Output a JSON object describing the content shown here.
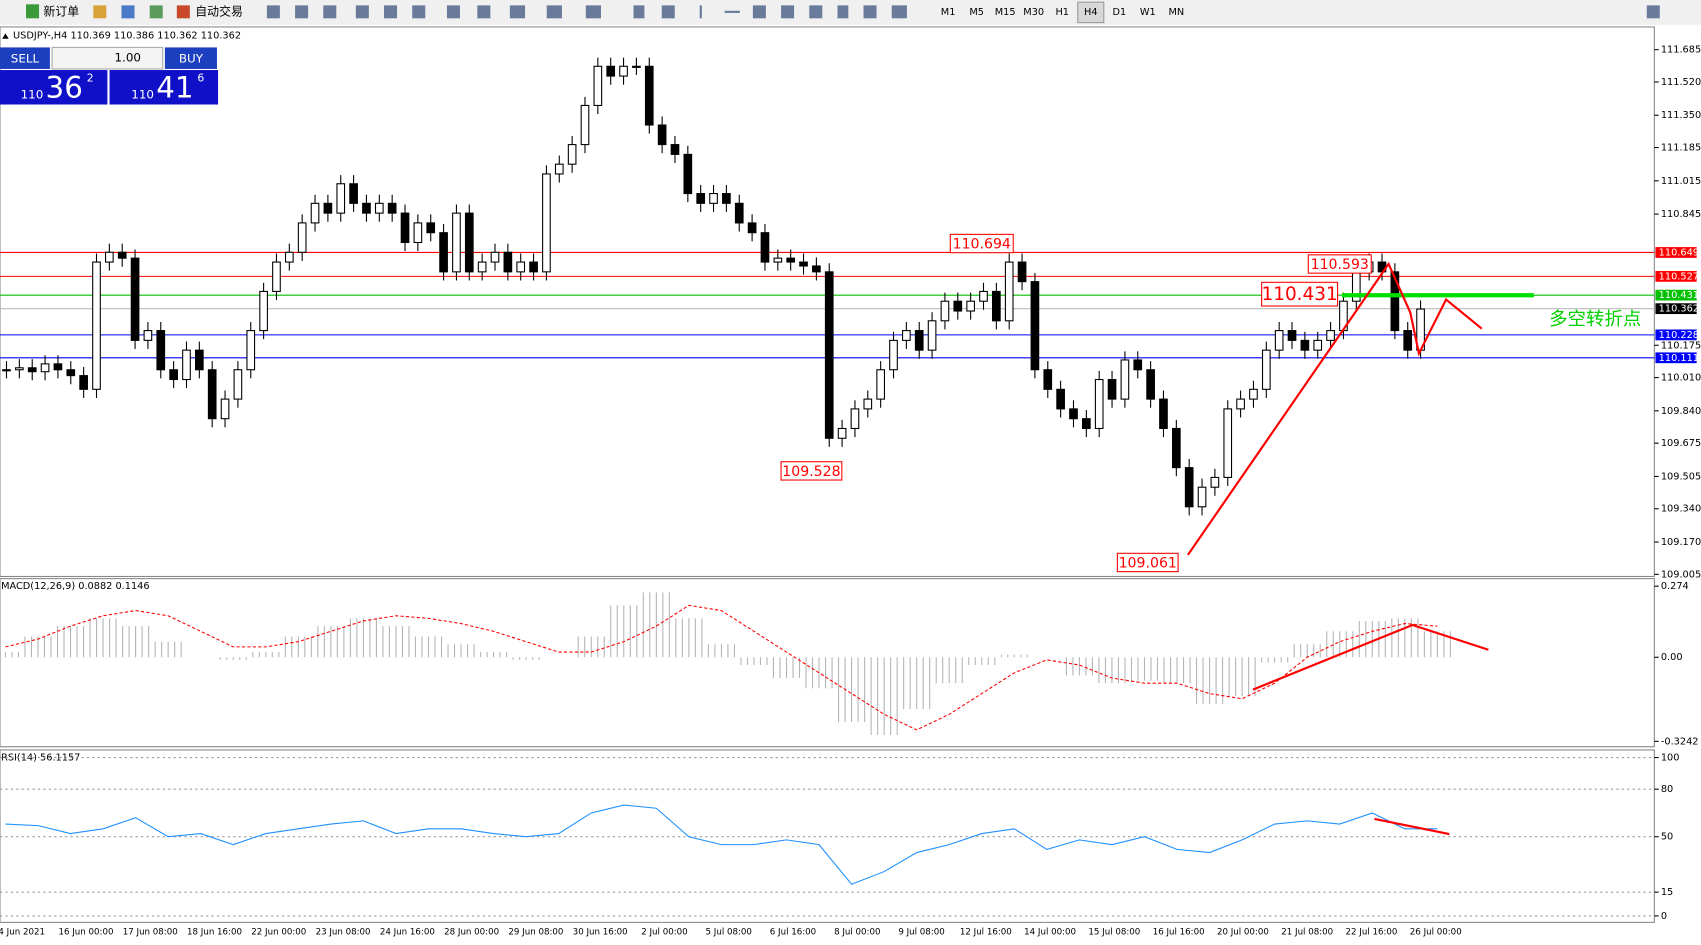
{
  "toolbar": {
    "new_order": "新订单",
    "auto_trading": "自动交易",
    "timeframes": [
      "M1",
      "M5",
      "M15",
      "M30",
      "H1",
      "H4",
      "D1",
      "W1",
      "MN"
    ],
    "active_timeframe": "H4"
  },
  "trade_panel": {
    "sell": "SELL",
    "lots": "1.00",
    "buy": "BUY",
    "bid": {
      "big": "110",
      "main": "36",
      "sup": "2"
    },
    "ask": {
      "big": "110",
      "main": "41",
      "sup": "6"
    }
  },
  "chart_data": [
    {
      "type": "candlestick",
      "title": "USDJPY-,H4  110.369 110.386 110.362 110.362",
      "categories": [
        "4 Jun 2021",
        null,
        null,
        null,
        null,
        "16 Jun 00:00",
        null,
        null,
        null,
        null,
        "17 Jun 08:00",
        null,
        null,
        null,
        null,
        "18 Jun 16:00",
        null,
        null,
        null,
        null,
        "22 Jun 00:00",
        null,
        null,
        null,
        null,
        "23 Jun 08:00",
        null,
        null,
        null,
        null,
        "24 Jun 16:00",
        null,
        null,
        null,
        null,
        "28 Jun 00:00",
        null,
        null,
        null,
        null,
        "29 Jun 08:00",
        null,
        null,
        null,
        null,
        "30 Jun 16:00",
        null,
        null,
        null,
        null,
        "2 Jul 00:00",
        null,
        null,
        null,
        null,
        "5 Jul 08:00",
        null,
        null,
        null,
        null,
        "6 Jul 16:00",
        null,
        null,
        null,
        null,
        "8 Jul 00:00",
        null,
        null,
        null,
        null,
        "9 Jul 08:00",
        null,
        null,
        null,
        null,
        "12 Jul 16:00",
        null,
        null,
        null,
        null,
        "14 Jul 00:00",
        null,
        null,
        null,
        null,
        "15 Jul 08:00",
        null,
        null,
        null,
        null,
        "16 Jul 16:00",
        null,
        null,
        null,
        null,
        "20 Jul 00:00",
        null,
        null,
        null,
        null,
        "21 Jul 08:00",
        null,
        null,
        null,
        null,
        "22 Jul 16:00",
        null,
        null,
        null,
        null,
        "26 Jul 00:00"
      ],
      "values": [
        110.05,
        110.06,
        110.04,
        110.08,
        110.05,
        110.02,
        109.95,
        110.6,
        110.65,
        110.62,
        110.2,
        110.25,
        110.05,
        110.0,
        110.15,
        110.05,
        109.8,
        109.9,
        110.05,
        110.25,
        110.45,
        110.6,
        110.65,
        110.8,
        110.9,
        110.85,
        111.0,
        110.9,
        110.85,
        110.9,
        110.85,
        110.7,
        110.8,
        110.75,
        110.55,
        110.85,
        110.55,
        110.6,
        110.65,
        110.55,
        110.6,
        110.55,
        111.05,
        111.1,
        111.2,
        111.4,
        111.6,
        111.55,
        111.6,
        111.6,
        111.3,
        111.2,
        111.15,
        110.95,
        110.9,
        110.95,
        110.9,
        110.8,
        110.75,
        110.6,
        110.62,
        110.6,
        110.58,
        110.55,
        109.7,
        109.75,
        109.85,
        109.9,
        110.05,
        110.2,
        110.25,
        110.15,
        110.3,
        110.4,
        110.35,
        110.4,
        110.45,
        110.3,
        110.6,
        110.5,
        110.05,
        109.95,
        109.85,
        109.8,
        109.75,
        110.0,
        109.9,
        110.1,
        110.05,
        109.9,
        109.75,
        109.55,
        109.35,
        109.45,
        109.5,
        109.85,
        109.9,
        109.95,
        110.15,
        110.25,
        110.2,
        110.15,
        110.2,
        110.25,
        110.4,
        110.55,
        110.6,
        110.55,
        110.25,
        110.15,
        110.36
      ],
      "ylim": [
        108.994,
        111.79
      ],
      "yticks": [
        111.685,
        {
          "value": 111.52,
          "label": "111.520"
        },
        {
          "value": 111.35,
          "label": "111.350"
        },
        111.185,
        111.015,
        110.845,
        110.175,
        {
          "value": 110.01,
          "label": "110.010"
        },
        {
          "value": 109.84,
          "label": "109.840"
        },
        109.675,
        109.505,
        {
          "value": 109.34,
          "label": "109.340"
        },
        {
          "value": 109.17,
          "label": "109.170"
        },
        109.005
      ],
      "price_lines": [
        {
          "value": 110.649,
          "color": "#ff0000"
        },
        {
          "value": 110.527,
          "color": "#ff0000"
        },
        {
          "value": 110.431,
          "color": "#00c000"
        },
        {
          "value": 110.362,
          "color": "#000000"
        },
        {
          "value": 110.228,
          "color": "#0000ff"
        },
        {
          "value": 110.111,
          "color": "#0000ff"
        }
      ],
      "annotations": [
        "110.694",
        "109.528",
        "110.593",
        "110.431",
        "109.061",
        "多空转折点"
      ]
    },
    {
      "type": "macd",
      "title": "MACD(12,26,9) 0.0882 0.1146",
      "values": [
        0.02,
        0.08,
        0.12,
        0.15,
        0.12,
        0.06,
        0.0,
        -0.01,
        0.02,
        0.08,
        0.12,
        0.15,
        0.12,
        0.08,
        0.05,
        0.02,
        -0.01,
        0.0,
        0.08,
        0.2,
        0.25,
        0.15,
        0.05,
        -0.03,
        -0.08,
        -0.12,
        -0.25,
        -0.3,
        -0.2,
        -0.1,
        -0.03,
        0.01,
        0.0,
        -0.07,
        -0.1,
        -0.09,
        -0.1,
        -0.18,
        -0.15,
        -0.02,
        0.05,
        0.1,
        0.14,
        0.15,
        0.1
      ],
      "signal": [
        0.04,
        0.07,
        0.12,
        0.16,
        0.18,
        0.16,
        0.1,
        0.04,
        0.04,
        0.06,
        0.1,
        0.14,
        0.16,
        0.15,
        0.13,
        0.1,
        0.06,
        0.02,
        0.02,
        0.06,
        0.12,
        0.2,
        0.18,
        0.1,
        0.02,
        -0.06,
        -0.14,
        -0.22,
        -0.28,
        -0.22,
        -0.14,
        -0.06,
        -0.01,
        -0.03,
        -0.08,
        -0.1,
        -0.1,
        -0.14,
        -0.16,
        -0.1,
        0.0,
        0.06,
        0.1,
        0.13,
        0.12
      ],
      "colors": {
        "histogram": "#b4b4b4",
        "signal": "#ff0000"
      },
      "ylim": [
        -0.345,
        0.299
      ],
      "yticks": [
        0.274,
        {
          "value": 0,
          "label": "0.00"
        },
        -0.3242
      ]
    },
    {
      "type": "line",
      "title": "RSI(14) 56.1157",
      "values": [
        58,
        57,
        52,
        55,
        62,
        50,
        52,
        45,
        52,
        55,
        58,
        60,
        52,
        55,
        55,
        52,
        50,
        52,
        65,
        70,
        68,
        50,
        45,
        45,
        48,
        45,
        20,
        28,
        40,
        45,
        52,
        55,
        42,
        48,
        45,
        50,
        42,
        40,
        48,
        58,
        60,
        58,
        65,
        55,
        55
      ],
      "color": "#1e90ff",
      "ylim": [
        -3.4,
        104.1
      ],
      "yticks": [
        100,
        80,
        50,
        15,
        0
      ],
      "grid": true
    }
  ]
}
